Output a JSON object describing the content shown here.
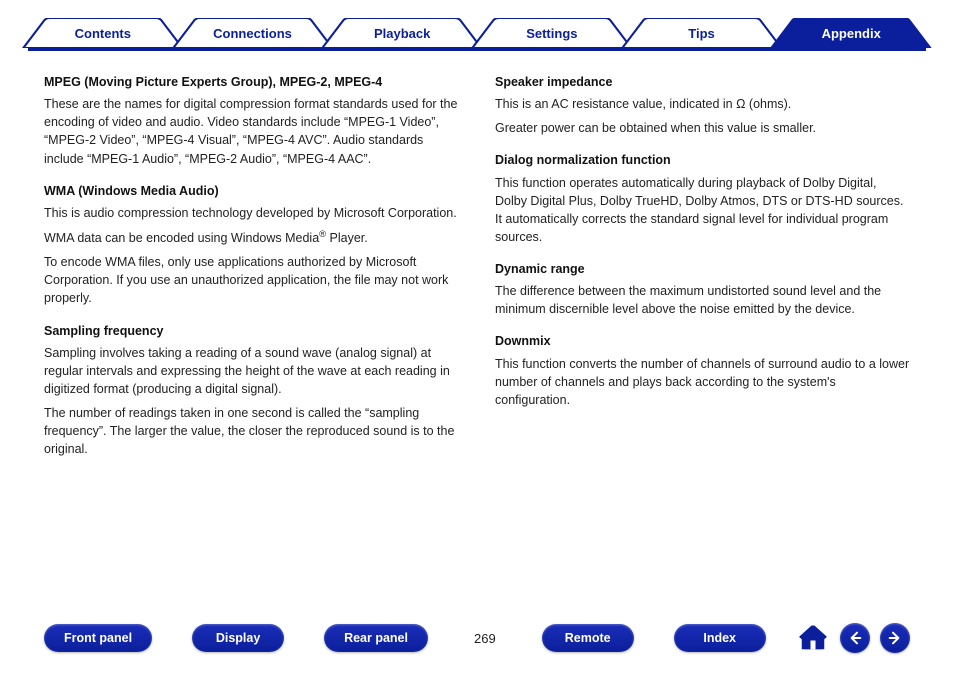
{
  "colors": {
    "brand": "#0b1f9c",
    "brand_light": "#1a2db8",
    "text": "#222222",
    "white": "#ffffff"
  },
  "tabs": [
    {
      "label": "Contents",
      "active": false
    },
    {
      "label": "Connections",
      "active": false
    },
    {
      "label": "Playback",
      "active": false
    },
    {
      "label": "Settings",
      "active": false
    },
    {
      "label": "Tips",
      "active": false
    },
    {
      "label": "Appendix",
      "active": true
    }
  ],
  "left_column": [
    {
      "term": "MPEG (Moving Picture Experts Group), MPEG-2, MPEG-4",
      "paras": [
        "These are the names for digital compression format standards used for the encoding of video and audio. Video standards include “MPEG-1 Video”, “MPEG-2 Video”, “MPEG-4 Visual”, “MPEG-4 AVC”. Audio standards include “MPEG-1 Audio”, “MPEG-2 Audio”, “MPEG-4 AAC”."
      ]
    },
    {
      "term": "WMA (Windows Media Audio)",
      "paras": [
        "This is audio compression technology developed by Microsoft Corporation.",
        "WMA data can be encoded using Windows Media® Player.",
        "To encode WMA files, only use applications authorized by Microsoft Corporation. If you use an unauthorized application, the file may not work properly."
      ]
    },
    {
      "term": "Sampling frequency",
      "paras": [
        "Sampling involves taking a reading of a sound wave (analog signal) at regular intervals and expressing the height of the wave at each reading in digitized format (producing a digital signal).",
        "The number of readings taken in one second is called the “sampling frequency”. The larger the value, the closer the reproduced sound is to the original."
      ]
    }
  ],
  "right_column": [
    {
      "term": "Speaker impedance",
      "paras": [
        "This is an AC resistance value, indicated in Ω (ohms).",
        "Greater power can be obtained when this value is smaller."
      ]
    },
    {
      "term": "Dialog normalization function",
      "paras": [
        "This function operates automatically during playback of Dolby Digital, Dolby Digital Plus, Dolby TrueHD, Dolby Atmos, DTS or DTS-HD sources. It automatically corrects the standard signal level for individual program sources."
      ]
    },
    {
      "term": "Dynamic range",
      "paras": [
        "The difference between the maximum undistorted sound level and the minimum discernible level above the noise emitted by the device."
      ]
    },
    {
      "term": "Downmix",
      "paras": [
        "This function converts the number of channels of surround audio to a lower number of channels and plays back according to the system's configuration."
      ]
    }
  ],
  "bottom": {
    "front_panel": "Front panel",
    "display": "Display",
    "rear_panel": "Rear panel",
    "page": "269",
    "remote": "Remote",
    "index": "Index"
  }
}
